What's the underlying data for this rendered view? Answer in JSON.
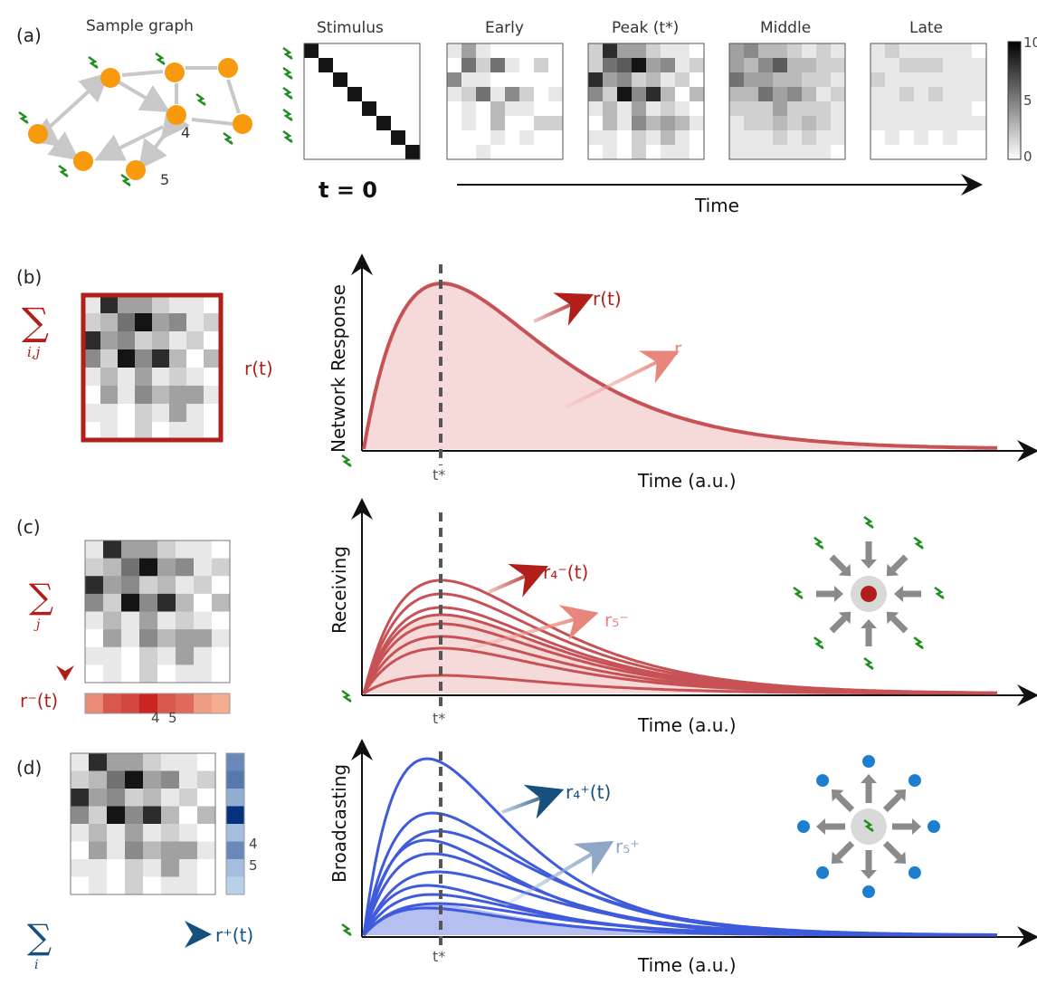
{
  "panel_a": {
    "label": "(a)",
    "graph_title": "Sample graph",
    "node_labels": [
      "4",
      "5"
    ],
    "matrix_titles": [
      "Stimulus",
      "Early",
      "Peak (t*)",
      "Middle",
      "Late"
    ],
    "t0_label": "t = 0",
    "time_label": "Time",
    "colorbar_ticks": [
      "10",
      "5",
      "0"
    ],
    "early": [
      [
        1,
        4,
        1,
        0,
        0,
        0,
        0,
        0
      ],
      [
        0,
        6,
        2,
        6,
        1,
        0,
        2,
        0
      ],
      [
        5,
        1,
        1,
        0,
        0,
        0,
        0,
        0
      ],
      [
        1,
        2,
        6,
        1,
        5,
        2,
        0,
        1
      ],
      [
        0,
        1,
        0,
        3,
        1,
        1,
        0,
        0
      ],
      [
        0,
        1,
        0,
        3,
        0,
        0,
        2,
        2
      ],
      [
        0,
        0,
        0,
        1,
        0,
        1,
        0,
        0
      ],
      [
        0,
        0,
        1,
        0,
        0,
        0,
        0,
        0
      ]
    ],
    "peak": [
      [
        2,
        9,
        4,
        4,
        2,
        1,
        1,
        0
      ],
      [
        2,
        6,
        7,
        10,
        4,
        5,
        1,
        2
      ],
      [
        9,
        4,
        5,
        2,
        3,
        1,
        2,
        0
      ],
      [
        5,
        2,
        10,
        5,
        9,
        3,
        0,
        3
      ],
      [
        1,
        3,
        1,
        4,
        1,
        2,
        1,
        0
      ],
      [
        0,
        3,
        1,
        5,
        3,
        4,
        3,
        1
      ],
      [
        1,
        1,
        0,
        2,
        1,
        3,
        1,
        0
      ],
      [
        0,
        1,
        0,
        2,
        0,
        1,
        1,
        0
      ]
    ],
    "middle": [
      [
        4,
        5,
        3,
        3,
        2,
        1,
        2,
        1
      ],
      [
        4,
        3,
        5,
        7,
        3,
        3,
        2,
        2
      ],
      [
        6,
        4,
        4,
        3,
        3,
        2,
        2,
        1
      ],
      [
        3,
        3,
        6,
        4,
        5,
        3,
        1,
        2
      ],
      [
        2,
        2,
        2,
        4,
        2,
        2,
        2,
        1
      ],
      [
        1,
        2,
        2,
        3,
        2,
        3,
        2,
        1
      ],
      [
        1,
        1,
        1,
        2,
        1,
        2,
        1,
        1
      ],
      [
        1,
        1,
        1,
        1,
        1,
        1,
        1,
        0
      ]
    ],
    "late": [
      [
        1,
        2,
        1,
        1,
        1,
        1,
        1,
        0
      ],
      [
        1,
        1,
        2,
        2,
        2,
        1,
        1,
        1
      ],
      [
        2,
        1,
        1,
        1,
        1,
        1,
        1,
        1
      ],
      [
        1,
        1,
        2,
        1,
        2,
        1,
        1,
        1
      ],
      [
        1,
        1,
        1,
        1,
        1,
        1,
        1,
        0
      ],
      [
        1,
        1,
        1,
        1,
        1,
        1,
        1,
        1
      ],
      [
        0,
        1,
        0,
        1,
        0,
        1,
        0,
        0
      ],
      [
        0,
        0,
        0,
        0,
        0,
        0,
        0,
        0
      ]
    ]
  },
  "panel_b": {
    "label": "(b)",
    "sum_sub": "i,j",
    "matrix_label": "r(t)",
    "ylabel": "Network Response",
    "xlabel": "Time (a.u.)",
    "tstar": "t*",
    "curve_label": "r(t)",
    "area_label": "r",
    "matrix": [
      [
        1,
        9,
        4,
        4,
        2,
        1,
        1,
        0
      ],
      [
        2,
        3,
        6,
        10,
        4,
        5,
        1,
        2
      ],
      [
        9,
        4,
        5,
        2,
        3,
        1,
        2,
        0
      ],
      [
        5,
        2,
        10,
        5,
        9,
        3,
        0,
        3
      ],
      [
        1,
        3,
        1,
        4,
        1,
        2,
        1,
        0
      ],
      [
        0,
        4,
        1,
        5,
        3,
        4,
        4,
        1
      ],
      [
        1,
        1,
        0,
        2,
        1,
        4,
        1,
        0
      ],
      [
        0,
        1,
        0,
        2,
        0,
        1,
        1,
        0
      ]
    ]
  },
  "panel_c": {
    "label": "(c)",
    "sum_sub": "j",
    "vector_label": "r⁻(t)",
    "vector_ticks": [
      "4",
      "5"
    ],
    "ylabel": "Receiving",
    "xlabel": "Time (a.u.)",
    "tstar": "t*",
    "curve_label": "r₄⁻(t)",
    "area_label": "r₅⁻",
    "vector": [
      3,
      6,
      7,
      9,
      6,
      5,
      2,
      1
    ],
    "peaks": [
      125,
      110,
      95,
      87,
      77,
      63,
      50,
      20
    ]
  },
  "panel_d": {
    "label": "(d)",
    "sum_sub": "i",
    "vector_label": "r⁺(t)",
    "vector_ticks": [
      "4",
      "5"
    ],
    "ylabel": "Broadcasting",
    "xlabel": "Time (a.u.)",
    "tstar": "t*",
    "curve_label": "r₄⁺(t)",
    "area_label": "r₅⁺",
    "vector": [
      5,
      6,
      3,
      10,
      2,
      5,
      2,
      1
    ],
    "peaks": [
      195,
      135,
      115,
      105,
      90,
      70,
      55,
      45,
      35,
      30
    ]
  },
  "colors": {
    "red_line": "#c75255",
    "red_fill": "#f6d9d9",
    "red_dark": "#b11f1a",
    "blue_line": "#3f5bdc",
    "blue_fill": "#b5bff0",
    "blue_dark": "#15507e",
    "green_bolt": "#1f8f1f",
    "node_orange": "#f79a0d",
    "edge_gray": "#c8c8c8",
    "tstar_gray": "#555555"
  }
}
